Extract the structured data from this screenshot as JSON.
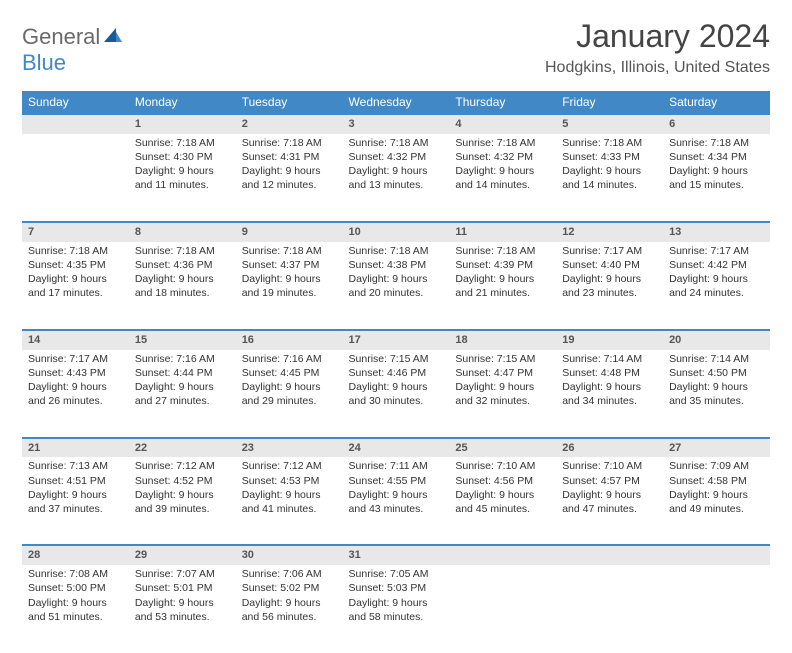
{
  "logo": {
    "line1": "General",
    "line2": "Blue"
  },
  "title": "January 2024",
  "location": "Hodgkins, Illinois, United States",
  "colors": {
    "header_bg": "#4188c6",
    "header_fg": "#ffffff",
    "daynum_bg": "#e8e8e8",
    "border": "#4188c6",
    "logo_gray": "#6b6b6b",
    "logo_blue": "#4188c6"
  },
  "typography": {
    "title_fontsize": 32,
    "location_fontsize": 16,
    "header_fontsize": 12,
    "cell_fontsize": 10.5
  },
  "weekdays": [
    "Sunday",
    "Monday",
    "Tuesday",
    "Wednesday",
    "Thursday",
    "Friday",
    "Saturday"
  ],
  "layout": {
    "cols": 7,
    "rows": 5,
    "first_day_col": 1,
    "last_day": 31
  },
  "days": {
    "1": {
      "sunrise": "Sunrise: 7:18 AM",
      "sunset": "Sunset: 4:30 PM",
      "daylight": "Daylight: 9 hours and 11 minutes."
    },
    "2": {
      "sunrise": "Sunrise: 7:18 AM",
      "sunset": "Sunset: 4:31 PM",
      "daylight": "Daylight: 9 hours and 12 minutes."
    },
    "3": {
      "sunrise": "Sunrise: 7:18 AM",
      "sunset": "Sunset: 4:32 PM",
      "daylight": "Daylight: 9 hours and 13 minutes."
    },
    "4": {
      "sunrise": "Sunrise: 7:18 AM",
      "sunset": "Sunset: 4:32 PM",
      "daylight": "Daylight: 9 hours and 14 minutes."
    },
    "5": {
      "sunrise": "Sunrise: 7:18 AM",
      "sunset": "Sunset: 4:33 PM",
      "daylight": "Daylight: 9 hours and 14 minutes."
    },
    "6": {
      "sunrise": "Sunrise: 7:18 AM",
      "sunset": "Sunset: 4:34 PM",
      "daylight": "Daylight: 9 hours and 15 minutes."
    },
    "7": {
      "sunrise": "Sunrise: 7:18 AM",
      "sunset": "Sunset: 4:35 PM",
      "daylight": "Daylight: 9 hours and 17 minutes."
    },
    "8": {
      "sunrise": "Sunrise: 7:18 AM",
      "sunset": "Sunset: 4:36 PM",
      "daylight": "Daylight: 9 hours and 18 minutes."
    },
    "9": {
      "sunrise": "Sunrise: 7:18 AM",
      "sunset": "Sunset: 4:37 PM",
      "daylight": "Daylight: 9 hours and 19 minutes."
    },
    "10": {
      "sunrise": "Sunrise: 7:18 AM",
      "sunset": "Sunset: 4:38 PM",
      "daylight": "Daylight: 9 hours and 20 minutes."
    },
    "11": {
      "sunrise": "Sunrise: 7:18 AM",
      "sunset": "Sunset: 4:39 PM",
      "daylight": "Daylight: 9 hours and 21 minutes."
    },
    "12": {
      "sunrise": "Sunrise: 7:17 AM",
      "sunset": "Sunset: 4:40 PM",
      "daylight": "Daylight: 9 hours and 23 minutes."
    },
    "13": {
      "sunrise": "Sunrise: 7:17 AM",
      "sunset": "Sunset: 4:42 PM",
      "daylight": "Daylight: 9 hours and 24 minutes."
    },
    "14": {
      "sunrise": "Sunrise: 7:17 AM",
      "sunset": "Sunset: 4:43 PM",
      "daylight": "Daylight: 9 hours and 26 minutes."
    },
    "15": {
      "sunrise": "Sunrise: 7:16 AM",
      "sunset": "Sunset: 4:44 PM",
      "daylight": "Daylight: 9 hours and 27 minutes."
    },
    "16": {
      "sunrise": "Sunrise: 7:16 AM",
      "sunset": "Sunset: 4:45 PM",
      "daylight": "Daylight: 9 hours and 29 minutes."
    },
    "17": {
      "sunrise": "Sunrise: 7:15 AM",
      "sunset": "Sunset: 4:46 PM",
      "daylight": "Daylight: 9 hours and 30 minutes."
    },
    "18": {
      "sunrise": "Sunrise: 7:15 AM",
      "sunset": "Sunset: 4:47 PM",
      "daylight": "Daylight: 9 hours and 32 minutes."
    },
    "19": {
      "sunrise": "Sunrise: 7:14 AM",
      "sunset": "Sunset: 4:48 PM",
      "daylight": "Daylight: 9 hours and 34 minutes."
    },
    "20": {
      "sunrise": "Sunrise: 7:14 AM",
      "sunset": "Sunset: 4:50 PM",
      "daylight": "Daylight: 9 hours and 35 minutes."
    },
    "21": {
      "sunrise": "Sunrise: 7:13 AM",
      "sunset": "Sunset: 4:51 PM",
      "daylight": "Daylight: 9 hours and 37 minutes."
    },
    "22": {
      "sunrise": "Sunrise: 7:12 AM",
      "sunset": "Sunset: 4:52 PM",
      "daylight": "Daylight: 9 hours and 39 minutes."
    },
    "23": {
      "sunrise": "Sunrise: 7:12 AM",
      "sunset": "Sunset: 4:53 PM",
      "daylight": "Daylight: 9 hours and 41 minutes."
    },
    "24": {
      "sunrise": "Sunrise: 7:11 AM",
      "sunset": "Sunset: 4:55 PM",
      "daylight": "Daylight: 9 hours and 43 minutes."
    },
    "25": {
      "sunrise": "Sunrise: 7:10 AM",
      "sunset": "Sunset: 4:56 PM",
      "daylight": "Daylight: 9 hours and 45 minutes."
    },
    "26": {
      "sunrise": "Sunrise: 7:10 AM",
      "sunset": "Sunset: 4:57 PM",
      "daylight": "Daylight: 9 hours and 47 minutes."
    },
    "27": {
      "sunrise": "Sunrise: 7:09 AM",
      "sunset": "Sunset: 4:58 PM",
      "daylight": "Daylight: 9 hours and 49 minutes."
    },
    "28": {
      "sunrise": "Sunrise: 7:08 AM",
      "sunset": "Sunset: 5:00 PM",
      "daylight": "Daylight: 9 hours and 51 minutes."
    },
    "29": {
      "sunrise": "Sunrise: 7:07 AM",
      "sunset": "Sunset: 5:01 PM",
      "daylight": "Daylight: 9 hours and 53 minutes."
    },
    "30": {
      "sunrise": "Sunrise: 7:06 AM",
      "sunset": "Sunset: 5:02 PM",
      "daylight": "Daylight: 9 hours and 56 minutes."
    },
    "31": {
      "sunrise": "Sunrise: 7:05 AM",
      "sunset": "Sunset: 5:03 PM",
      "daylight": "Daylight: 9 hours and 58 minutes."
    }
  }
}
